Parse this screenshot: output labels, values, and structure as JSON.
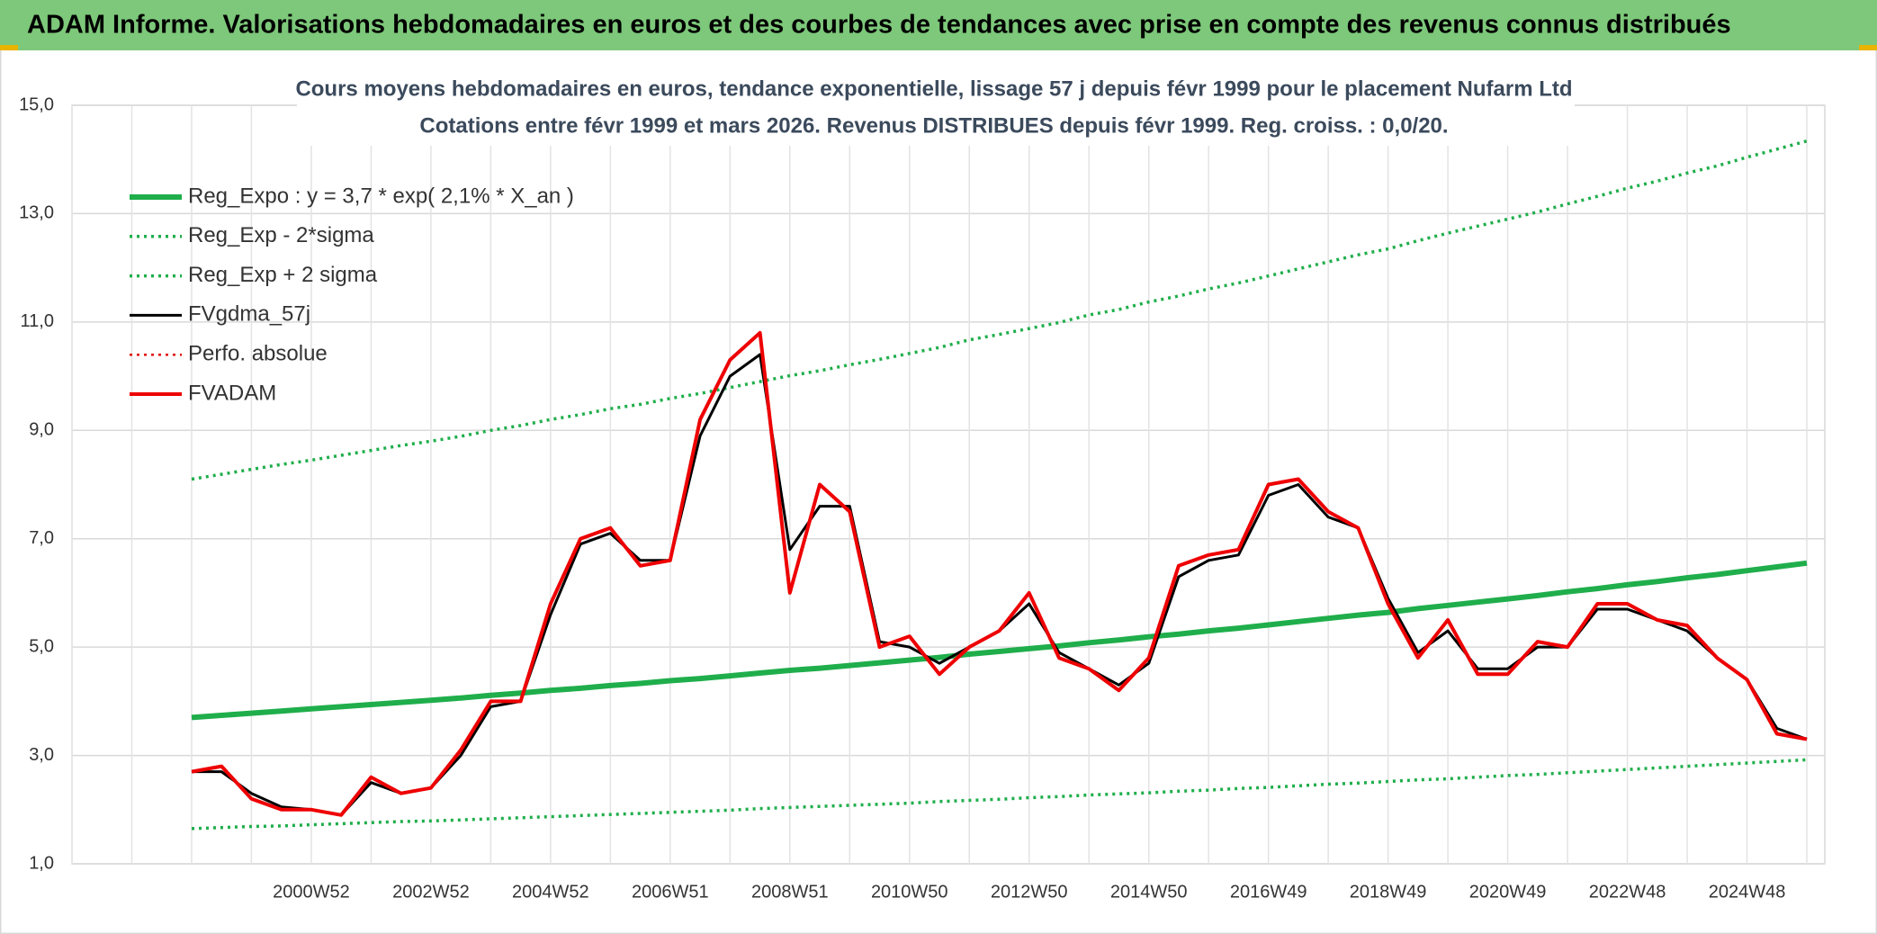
{
  "header": {
    "title": "ADAM Informe. Valorisations hebdomadaires en euros et des courbes de tendances avec prise en compte des revenus connus distribués"
  },
  "chart_data": {
    "type": "line",
    "title": "Cours moyens hebdomadaires en euros, tendance exponentielle, lissage 57 j depuis févr 1999 pour le placement Nufarm Ltd",
    "subtitle": "Cotations entre févr 1999 et mars 2026. Revenus DISTRIBUES depuis févr 1999. Reg. croiss. : 0,0/20.",
    "categories": [
      null,
      null,
      null,
      null,
      null,
      null,
      null,
      null,
      "2000W52",
      null,
      null,
      null,
      "2002W52",
      null,
      null,
      null,
      "2004W52",
      null,
      null,
      null,
      "2006W51",
      null,
      null,
      null,
      "2008W51",
      null,
      null,
      null,
      "2010W50",
      null,
      null,
      null,
      "2012W50",
      null,
      null,
      null,
      "2014W50",
      null,
      null,
      null,
      "2016W49",
      null,
      null,
      null,
      "2018W49",
      null,
      null,
      null,
      "2020W49",
      null,
      null,
      null,
      "2022W48",
      null,
      null,
      null,
      "2024W48",
      null,
      null
    ],
    "ylim": [
      1,
      15
    ],
    "yticks": [
      {
        "value": 1,
        "label": "1,0"
      },
      {
        "value": 3,
        "label": "3,0"
      },
      {
        "value": 5,
        "label": "5,0"
      },
      {
        "value": 7,
        "label": "7,0"
      },
      {
        "value": 9,
        "label": "9,0"
      },
      {
        "value": 11,
        "label": "11,0"
      },
      {
        "value": 13,
        "label": "13,0"
      },
      {
        "value": 15,
        "label": "15,0"
      }
    ],
    "grid": true,
    "legend": "upper left",
    "series": [
      {
        "name": "Reg_Expo : y = 3,7 * exp( 2,1% *  X_an )",
        "color": "#1fae4b",
        "line_style": "solid",
        "line_width": 6,
        "values": [
          null,
          null,
          null,
          null,
          3.7,
          3.74,
          3.78,
          3.82,
          3.86,
          3.9,
          3.94,
          3.98,
          4.02,
          4.06,
          4.11,
          4.15,
          4.2,
          4.24,
          4.29,
          4.33,
          4.38,
          4.42,
          4.47,
          4.52,
          4.57,
          4.61,
          4.66,
          4.71,
          4.76,
          4.81,
          4.87,
          4.92,
          4.97,
          5.02,
          5.08,
          5.13,
          5.19,
          5.24,
          5.3,
          5.35,
          5.41,
          5.47,
          5.53,
          5.59,
          5.64,
          5.71,
          5.77,
          5.83,
          5.89,
          5.95,
          6.02,
          6.08,
          6.15,
          6.21,
          6.28,
          6.34,
          6.41,
          6.48,
          6.55
        ]
      },
      {
        "name": "Reg_Exp - 2*sigma",
        "color": "#1fae4b",
        "line_style": "dotted",
        "line_width": 3.5,
        "values": [
          null,
          null,
          null,
          null,
          1.65,
          1.67,
          1.69,
          1.7,
          1.72,
          1.74,
          1.76,
          1.78,
          1.79,
          1.81,
          1.83,
          1.85,
          1.87,
          1.89,
          1.91,
          1.93,
          1.95,
          1.97,
          1.99,
          2.02,
          2.04,
          2.06,
          2.08,
          2.1,
          2.12,
          2.15,
          2.17,
          2.19,
          2.22,
          2.24,
          2.27,
          2.29,
          2.31,
          2.34,
          2.36,
          2.39,
          2.41,
          2.44,
          2.47,
          2.49,
          2.52,
          2.55,
          2.57,
          2.6,
          2.63,
          2.65,
          2.68,
          2.71,
          2.74,
          2.77,
          2.8,
          2.83,
          2.86,
          2.89,
          2.92
        ]
      },
      {
        "name": "Reg_Exp + 2 sigma",
        "color": "#1fae4b",
        "line_style": "dotted",
        "line_width": 3.5,
        "values": [
          null,
          null,
          null,
          null,
          8.1,
          8.19,
          8.28,
          8.37,
          8.45,
          8.54,
          8.63,
          8.72,
          8.8,
          8.89,
          9.0,
          9.09,
          9.2,
          9.29,
          9.4,
          9.48,
          9.59,
          9.68,
          9.79,
          9.9,
          10.01,
          10.1,
          10.21,
          10.31,
          10.42,
          10.53,
          10.67,
          10.77,
          10.88,
          10.99,
          11.13,
          11.23,
          11.37,
          11.48,
          11.61,
          11.72,
          11.85,
          11.98,
          12.11,
          12.24,
          12.35,
          12.5,
          12.64,
          12.77,
          12.9,
          13.03,
          13.18,
          13.32,
          13.47,
          13.6,
          13.75,
          13.88,
          14.04,
          14.19,
          14.34
        ]
      },
      {
        "name": "FVgdma_57j",
        "color": "#000000",
        "line_style": "solid",
        "line_width": 3,
        "values": [
          null,
          null,
          null,
          null,
          2.7,
          2.7,
          2.3,
          2.05,
          2.0,
          1.9,
          2.5,
          2.3,
          2.4,
          3.0,
          3.9,
          4.0,
          5.6,
          6.9,
          7.1,
          6.6,
          6.6,
          8.9,
          10.0,
          10.4,
          6.8,
          7.6,
          7.6,
          5.1,
          5.0,
          4.7,
          5.0,
          5.3,
          5.8,
          4.9,
          4.6,
          4.3,
          4.7,
          6.3,
          6.6,
          6.7,
          7.8,
          8.0,
          7.4,
          7.2,
          5.9,
          4.9,
          5.3,
          4.6,
          4.6,
          5.0,
          5.0,
          5.7,
          5.7,
          5.5,
          5.3,
          4.8,
          4.4,
          3.5,
          3.3
        ]
      },
      {
        "name": "Perfo. absolue",
        "color": "#e00000",
        "line_style": "dotted",
        "line_width": 2.5,
        "values": [
          null,
          null,
          null,
          null,
          null,
          null,
          null,
          null,
          null,
          null,
          null,
          null,
          null,
          null,
          null,
          null,
          null,
          null,
          null,
          null,
          null,
          null,
          null,
          null,
          null,
          null,
          null,
          null,
          null,
          null,
          null,
          null,
          null,
          null,
          null,
          null,
          null,
          null,
          null,
          null,
          null,
          null,
          null,
          null,
          null,
          null,
          null,
          null,
          null,
          null,
          null,
          null,
          null,
          null,
          null,
          null,
          null,
          null,
          null
        ]
      },
      {
        "name": "FVADAM",
        "color": "#ee0000",
        "line_style": "solid",
        "line_width": 4,
        "values": [
          null,
          null,
          null,
          null,
          2.7,
          2.8,
          2.2,
          2.0,
          2.0,
          1.9,
          2.6,
          2.3,
          2.4,
          3.1,
          4.0,
          4.0,
          5.8,
          7.0,
          7.2,
          6.5,
          6.6,
          9.2,
          10.3,
          10.8,
          6.0,
          8.0,
          7.5,
          5.0,
          5.2,
          4.5,
          5.0,
          5.3,
          6.0,
          4.8,
          4.6,
          4.2,
          4.8,
          6.5,
          6.7,
          6.8,
          8.0,
          8.1,
          7.5,
          7.2,
          5.8,
          4.8,
          5.5,
          4.5,
          4.5,
          5.1,
          5.0,
          5.8,
          5.8,
          5.5,
          5.4,
          4.8,
          4.4,
          3.4,
          3.3
        ]
      }
    ]
  }
}
